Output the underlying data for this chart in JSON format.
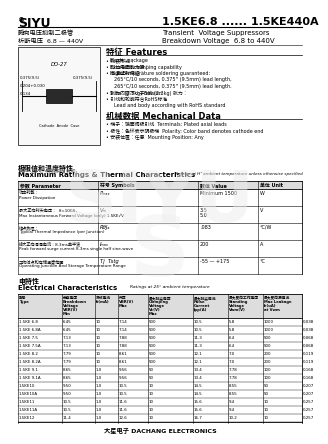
{
  "title_left": "SIYU",
  "title_right": "1.5KE6.8 ...... 1.5KE440A",
  "subtitle_left_cn": "瞬向电压抑制二极管",
  "subtitle_right_en": "Transient  Voltage Suppressors",
  "subtitle2_left": "析断电压  6.8 — 440V",
  "subtitle2_right": "Breakdown Voltage  6.8 to 440V",
  "features_title": "特征 Features",
  "mech_title": "机械数据 Mechanical Data",
  "max_ratings_title": "极限值和温度特性",
  "max_ratings_title2": "Maximum Ratings & Thermal Characteristics",
  "elec_title": "电特性",
  "elec_title2": "Electrical Characteristics",
  "elec_rows": [
    [
      "1.5KE 6.8",
      "6.45",
      "10",
      "7.14",
      "500",
      "10.5",
      "5.8",
      "1000",
      "0.038"
    ],
    [
      "1.5KE 6.8A",
      "6.45",
      "10",
      "7.14",
      "500",
      "10.5",
      "5.8",
      "1000",
      "0.038"
    ],
    [
      "1.5KE 7.5",
      "7.13",
      "10",
      "7.88",
      "500",
      "11.3",
      "6.4",
      "500",
      "0.068"
    ],
    [
      "1.5KE 7.5A",
      "7.13",
      "10",
      "7.88",
      "500",
      "11.3",
      "6.4",
      "500",
      "0.068"
    ],
    [
      "1.5KE 8.2",
      "7.79",
      "10",
      "8.61",
      "500",
      "12.1",
      "7.0",
      "200",
      "0.119"
    ],
    [
      "1.5KE 8.2A",
      "7.79",
      "10",
      "8.61",
      "500",
      "12.1",
      "7.0",
      "200",
      "0.119"
    ],
    [
      "1.5KE 9.1",
      "8.65",
      "1.0",
      "9.56",
      "50",
      "13.4",
      "7.78",
      "100",
      "0.168"
    ],
    [
      "1.5KE 9.1A",
      "8.65",
      "1.0",
      "9.56",
      "50",
      "13.4",
      "7.78",
      "100",
      "0.168"
    ],
    [
      "1.5KE10",
      "9.50",
      "1.0",
      "10.5",
      "10",
      "14.5",
      "8.55",
      "50",
      "0.207"
    ],
    [
      "1.5KE10A",
      "9.50",
      "1.0",
      "10.5",
      "10",
      "14.5",
      "8.55",
      "50",
      "0.207"
    ],
    [
      "1.5KE11",
      "10.5",
      "1.0",
      "11.6",
      "10",
      "15.6",
      "9.4",
      "10",
      "0.257"
    ],
    [
      "1.5KE11A",
      "10.5",
      "1.0",
      "11.6",
      "10",
      "15.6",
      "9.4",
      "10",
      "0.257"
    ],
    [
      "1.5KE12",
      "11.4",
      "1.0",
      "12.6",
      "10",
      "16.7",
      "10.2",
      "10",
      "0.257"
    ]
  ],
  "footer": "大星电子 DACHANG ELECTRONICS",
  "bg_color": "#ffffff"
}
